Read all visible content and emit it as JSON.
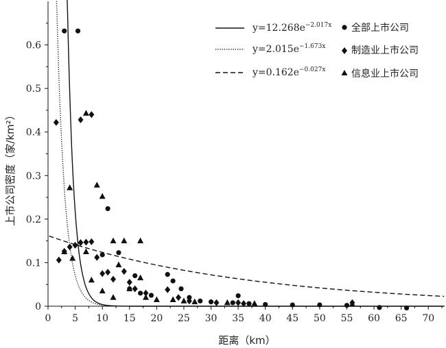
{
  "chart_data": {
    "type": "scatter",
    "title": "",
    "xlabel": "距离（km）",
    "ylabel": "上市公司密度（家/km²）",
    "xlim": [
      0,
      73
    ],
    "ylim": [
      0,
      0.7
    ],
    "x_ticks": [
      0,
      5,
      10,
      15,
      20,
      25,
      30,
      35,
      40,
      45,
      50,
      55,
      60,
      65,
      70
    ],
    "y_ticks": [
      0,
      0.1,
      0.2,
      0.3,
      0.4,
      0.5,
      0.6
    ],
    "x_tick_labels": [
      "0",
      "5",
      "10",
      "15",
      "20",
      "25",
      "30",
      "35",
      "40",
      "45",
      "50",
      "55",
      "60",
      "65",
      "70"
    ],
    "y_tick_labels": [
      "0",
      "0.1",
      "0.2",
      "0.3",
      "0.4",
      "0.5",
      "0.6"
    ],
    "grid": false,
    "legend_position": "top-right",
    "fits": [
      {
        "label": "y=12.268e",
        "exp": "−2.017x",
        "a": 12.268,
        "b": 2.017,
        "style": "solid",
        "x_scale": 2.5
      },
      {
        "label": "y=2.015e",
        "exp": "−1.673x",
        "a": 2.015,
        "b": 1.673,
        "style": "dotted",
        "x_scale": 2.5
      },
      {
        "label": "y=0.162e",
        "exp": "−0.027x",
        "a": 0.162,
        "b": 0.027,
        "style": "dashed",
        "x_scale": 1.0
      }
    ],
    "series": [
      {
        "name": "全部上市公司",
        "marker": "circle",
        "points": [
          [
            3,
            0.632
          ],
          [
            5.5,
            0.632
          ],
          [
            11,
            0.224
          ],
          [
            13,
            0.123
          ],
          [
            10,
            0.118
          ],
          [
            22,
            0.073
          ],
          [
            23,
            0.058
          ],
          [
            24.5,
            0.04
          ],
          [
            16,
            0.07
          ],
          [
            35,
            0.024
          ],
          [
            15,
            0.04
          ],
          [
            17,
            0.03
          ],
          [
            19,
            0.025
          ],
          [
            26,
            0.02
          ],
          [
            28,
            0.012
          ],
          [
            30,
            0.01
          ],
          [
            34,
            0.008
          ],
          [
            37,
            0.006
          ],
          [
            40,
            0.004
          ],
          [
            45,
            0.003
          ],
          [
            50,
            0.003
          ],
          [
            55,
            0.002
          ],
          [
            61,
            -0.003
          ],
          [
            66,
            -0.004
          ]
        ]
      },
      {
        "name": "制造业上市公司",
        "marker": "diamond",
        "points": [
          [
            1.5,
            0.422
          ],
          [
            6,
            0.428
          ],
          [
            8,
            0.44
          ],
          [
            2,
            0.106
          ],
          [
            3,
            0.126
          ],
          [
            4,
            0.136
          ],
          [
            5,
            0.14
          ],
          [
            6,
            0.146
          ],
          [
            7,
            0.147
          ],
          [
            8,
            0.148
          ],
          [
            9,
            0.112
          ],
          [
            10,
            0.075
          ],
          [
            11,
            0.078
          ],
          [
            12,
            0.062
          ],
          [
            14,
            0.08
          ],
          [
            15,
            0.055
          ],
          [
            16,
            0.04
          ],
          [
            18,
            0.03
          ],
          [
            22,
            0.038
          ],
          [
            24,
            0.02
          ],
          [
            26,
            0.012
          ],
          [
            31,
            0.008
          ],
          [
            35,
            0.008
          ],
          [
            36,
            0.006
          ],
          [
            56,
            0.008
          ]
        ]
      },
      {
        "name": "信息业上市公司",
        "marker": "triangle",
        "points": [
          [
            7,
            0.443
          ],
          [
            9,
            0.278
          ],
          [
            4,
            0.272
          ],
          [
            10,
            0.252
          ],
          [
            12,
            0.15
          ],
          [
            14,
            0.15
          ],
          [
            17,
            0.15
          ],
          [
            13,
            0.095
          ],
          [
            7,
            0.125
          ],
          [
            3,
            0.125
          ],
          [
            4.5,
            0.11
          ],
          [
            8,
            0.06
          ],
          [
            10,
            0.035
          ],
          [
            12,
            0.02
          ],
          [
            15,
            0.04
          ],
          [
            17,
            0.065
          ],
          [
            18,
            0.02
          ],
          [
            20,
            0.015
          ],
          [
            23,
            0.015
          ],
          [
            25,
            0.012
          ],
          [
            27,
            0.01
          ],
          [
            33,
            0.008
          ],
          [
            38,
            0.006
          ],
          [
            56,
            0.005
          ]
        ]
      }
    ]
  }
}
